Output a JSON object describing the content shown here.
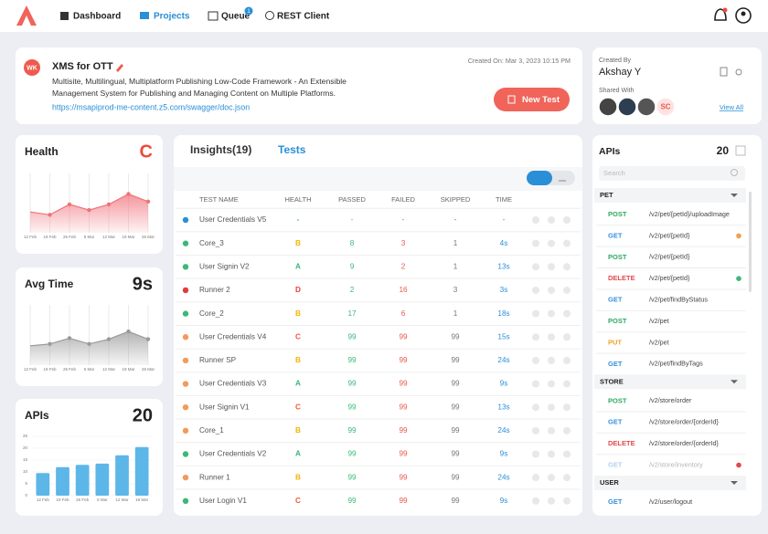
{
  "nav": {
    "items": [
      "Dashboard",
      "Projects",
      "Queue",
      "REST Client"
    ],
    "active": 1,
    "queue_badge": "1"
  },
  "project": {
    "initials": "WK",
    "name": "XMS for OTT",
    "created_on": "Created On: Mar 3, 2023  10:15 PM",
    "description": "Multisite, Multilingual, Multiplatform Publishing Low-Code Framework - An Extensible Management System for Publishing and Managing Content on Multiple Platforms.",
    "link": "https://msapiprod-me-content.z5.com/swagger/doc.json",
    "button": "New Test"
  },
  "owner": {
    "created_by_label": "Created By",
    "name": "Akshay Y",
    "shared_with_label": "Shared With",
    "shared": [
      "SC"
    ],
    "view_all": "View All"
  },
  "chart_data": [
    {
      "type": "area",
      "title": "Health",
      "headline": "C",
      "headline_color": "#ef4b3c",
      "categories": [
        "12 Feb",
        "19 Feb",
        "26 Feb",
        "5 Mar",
        "12 Mar",
        "19 Mar",
        "26 Mar"
      ],
      "values": [
        22,
        19,
        30,
        24,
        30,
        41,
        33
      ],
      "color": "#f0727a",
      "ylim": [
        0,
        55
      ]
    },
    {
      "type": "area",
      "title": "Avg Time",
      "headline": "9s",
      "headline_color": "#222222",
      "categories": [
        "12 Feb",
        "19 Feb",
        "26 Feb",
        "5 Mar",
        "12 Mar",
        "19 Mar",
        "26 Mar"
      ],
      "values": [
        20,
        22,
        28,
        22,
        27,
        35,
        27
      ],
      "color": "#9a9a9a",
      "ylim": [
        0,
        55
      ]
    },
    {
      "type": "bar",
      "title": "APIs",
      "headline": "20",
      "headline_color": "#222222",
      "categories": [
        "12 Feb",
        "19 Feb",
        "26 Feb",
        "5 Mar",
        "12 Mar",
        "19 Mar"
      ],
      "values": [
        9.5,
        12,
        13,
        13.5,
        17,
        20.5
      ],
      "color": "#5db6e8",
      "ylim": [
        0,
        25
      ],
      "yticks": [
        0,
        5,
        10,
        15,
        20,
        25
      ]
    }
  ],
  "tests": {
    "tabs": [
      "Insights(19)",
      "Tests"
    ],
    "active_tab": 1,
    "columns": [
      "TEST NAME",
      "HEALTH",
      "PASSED",
      "FAILED",
      "SKIPPED",
      "TIME"
    ],
    "grade_colors": {
      "A": "#3cb878",
      "B": "#f0b400",
      "C": "#ef5a3c",
      "D": "#e23b3b",
      "-": "#3cb878"
    },
    "rows": [
      {
        "status": "#2a8fd6",
        "cells": [
          "User Credentials V5",
          "-",
          "-",
          "-",
          "-",
          "-"
        ]
      },
      {
        "status": "#3cb878",
        "cells": [
          "Core_3",
          "B",
          "8",
          "3",
          "1",
          "4s"
        ]
      },
      {
        "status": "#3cb878",
        "cells": [
          "User Signin V2",
          "A",
          "9",
          "2",
          "1",
          "13s"
        ]
      },
      {
        "status": "#e23b3b",
        "cells": [
          "Runner 2",
          "D",
          "2",
          "16",
          "3",
          "3s"
        ]
      },
      {
        "status": "#3cb878",
        "cells": [
          "Core_2",
          "B",
          "17",
          "6",
          "1",
          "18s"
        ]
      },
      {
        "status": "#f39a5a",
        "cells": [
          "User Credentials V4",
          "C",
          "99",
          "99",
          "99",
          "15s"
        ]
      },
      {
        "status": "#f39a5a",
        "cells": [
          "Runner SP",
          "B",
          "99",
          "99",
          "99",
          "24s"
        ]
      },
      {
        "status": "#f39a5a",
        "cells": [
          "User Credentials V3",
          "A",
          "99",
          "99",
          "99",
          "9s"
        ]
      },
      {
        "status": "#f39a5a",
        "cells": [
          "User Signin V1",
          "C",
          "99",
          "99",
          "99",
          "13s"
        ]
      },
      {
        "status": "#f39a5a",
        "cells": [
          "Core_1",
          "B",
          "99",
          "99",
          "99",
          "24s"
        ]
      },
      {
        "status": "#3cb878",
        "cells": [
          "User Credentials V2",
          "A",
          "99",
          "99",
          "99",
          "9s"
        ]
      },
      {
        "status": "#f39a5a",
        "cells": [
          "Runner 1",
          "B",
          "99",
          "99",
          "99",
          "24s"
        ]
      },
      {
        "status": "#3cb878",
        "cells": [
          "User Login V1",
          "C",
          "99",
          "99",
          "99",
          "9s"
        ]
      }
    ]
  },
  "apis": {
    "title": "APIs",
    "count": "20",
    "search": "Search",
    "method_colors": {
      "POST": "#2eaa5e",
      "GET": "#3a8fd8",
      "DELETE": "#e5484d",
      "PUT": "#f0a020"
    },
    "groups": [
      {
        "name": "PET",
        "items": [
          {
            "method": "POST",
            "path": "/v2/pet/{petId}/uploadImage"
          },
          {
            "method": "GET",
            "path": "/v2/pet/{petId}",
            "dot": "#f0a050"
          },
          {
            "method": "POST",
            "path": "/v2/pet/{petId}"
          },
          {
            "method": "DELETE",
            "path": "/v2/pet/{petId}",
            "dot": "#3cb878"
          },
          {
            "method": "GET",
            "path": "/v2/pet/findByStatus"
          },
          {
            "method": "POST",
            "path": "/v2/pet"
          },
          {
            "method": "PUT",
            "path": "/v2/pet"
          },
          {
            "method": "GET",
            "path": "/v2/pet/findByTags"
          }
        ]
      },
      {
        "name": "STORE",
        "items": [
          {
            "method": "POST",
            "path": "/v2/store/order"
          },
          {
            "method": "GET",
            "path": "/v2/store/order/{orderId}"
          },
          {
            "method": "DELETE",
            "path": "/v2/store/order/{orderId}"
          },
          {
            "method": "GET",
            "path": "/v2/store/inventory",
            "disabled": true,
            "dot": "#e5484d"
          }
        ]
      },
      {
        "name": "USER",
        "items": [
          {
            "method": "GET",
            "path": "/v2/user/logout"
          }
        ]
      }
    ]
  }
}
